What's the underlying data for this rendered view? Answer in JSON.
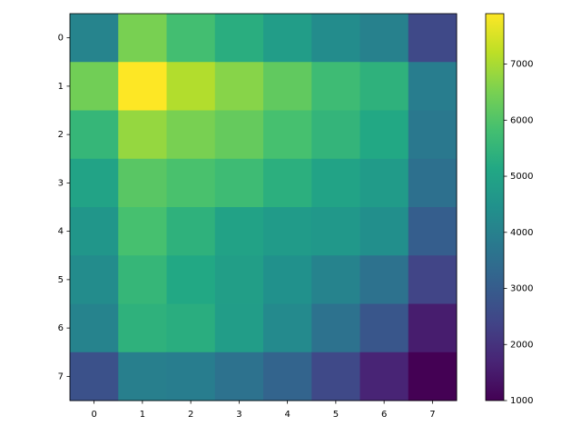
{
  "chart_data": {
    "type": "heatmap",
    "x": [
      0,
      1,
      2,
      3,
      4,
      5,
      6,
      7
    ],
    "y": [
      0,
      1,
      2,
      3,
      4,
      5,
      6,
      7
    ],
    "z": [
      [
        4100,
        6500,
        5800,
        5300,
        4800,
        4300,
        4000,
        2500
      ],
      [
        6400,
        7900,
        7100,
        6650,
        6200,
        5700,
        5400,
        3900
      ],
      [
        5550,
        6800,
        6500,
        6250,
        5850,
        5500,
        5150,
        3750
      ],
      [
        5000,
        6100,
        5900,
        5700,
        5350,
        5000,
        4750,
        3550
      ],
      [
        4600,
        5850,
        5400,
        4950,
        4750,
        4650,
        4400,
        3050
      ],
      [
        4300,
        5550,
        5150,
        4850,
        4450,
        4050,
        3600,
        2400
      ],
      [
        4050,
        5400,
        5300,
        4800,
        4250,
        3600,
        2850,
        1550
      ],
      [
        2700,
        3950,
        3900,
        3600,
        3200,
        2500,
        1700,
        1000
      ]
    ],
    "colormap": "viridis",
    "clim": [
      1000,
      7900
    ],
    "cticks": [
      1000,
      2000,
      3000,
      4000,
      5000,
      6000,
      7000
    ]
  }
}
